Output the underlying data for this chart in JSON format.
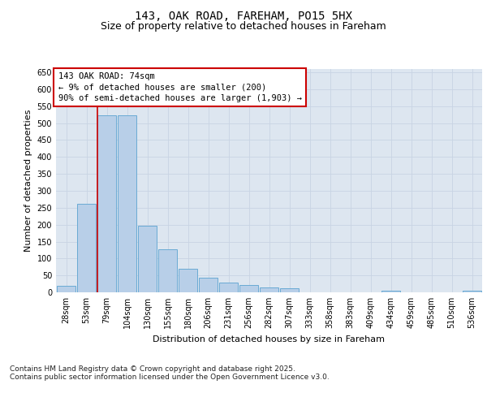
{
  "title": "143, OAK ROAD, FAREHAM, PO15 5HX",
  "subtitle": "Size of property relative to detached houses in Fareham",
  "xlabel": "Distribution of detached houses by size in Fareham",
  "ylabel": "Number of detached properties",
  "categories": [
    "28sqm",
    "53sqm",
    "79sqm",
    "104sqm",
    "130sqm",
    "155sqm",
    "180sqm",
    "206sqm",
    "231sqm",
    "256sqm",
    "282sqm",
    "307sqm",
    "333sqm",
    "358sqm",
    "383sqm",
    "409sqm",
    "434sqm",
    "459sqm",
    "485sqm",
    "510sqm",
    "536sqm"
  ],
  "values": [
    20,
    262,
    522,
    522,
    197,
    128,
    70,
    43,
    30,
    22,
    15,
    12,
    0,
    0,
    0,
    0,
    5,
    0,
    0,
    0,
    5
  ],
  "bar_color": "#b8cfe8",
  "bar_edge_color": "#6aaad4",
  "vline_x_index": 1.52,
  "vline_color": "#cc0000",
  "annotation_text": "143 OAK ROAD: 74sqm\n← 9% of detached houses are smaller (200)\n90% of semi-detached houses are larger (1,903) →",
  "annotation_box_color": "#cc0000",
  "ylim": [
    0,
    660
  ],
  "yticks": [
    0,
    50,
    100,
    150,
    200,
    250,
    300,
    350,
    400,
    450,
    500,
    550,
    600,
    650
  ],
  "grid_color": "#c8d4e3",
  "background_color": "#dde6f0",
  "footer_text": "Contains HM Land Registry data © Crown copyright and database right 2025.\nContains public sector information licensed under the Open Government Licence v3.0.",
  "title_fontsize": 10,
  "subtitle_fontsize": 9,
  "axis_label_fontsize": 8,
  "tick_fontsize": 7,
  "annotation_fontsize": 7.5,
  "footer_fontsize": 6.5
}
